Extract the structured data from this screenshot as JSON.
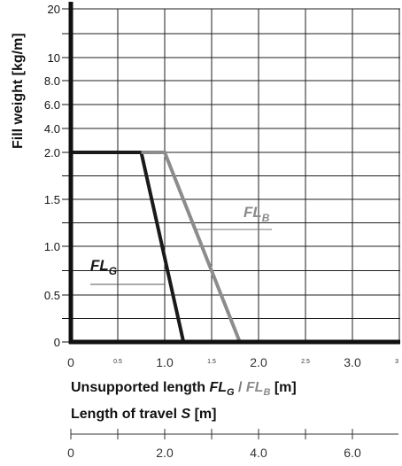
{
  "chart_data": {
    "type": "line",
    "ylabel": "Fill weight [kg/m]",
    "y_ticks": [
      "20",
      "10",
      "8.0",
      "6.0",
      "4.0",
      "2.0",
      "1.5",
      "1.0",
      "0.5",
      "0"
    ],
    "x_ticks_major": [
      "0",
      "1.0",
      "2.0",
      "3.0"
    ],
    "x_ticks_minor": [
      "0.5",
      "1.5",
      "2.5",
      "3"
    ],
    "xlabel": {
      "prefix": "Unsupported length ",
      "g_main": "FL",
      "g_sub": "G",
      "sep": " / ",
      "b_main": "FL",
      "b_sub": "B",
      "suffix": " [m]"
    },
    "secondary_axis": {
      "label_prefix": "Length of travel ",
      "label_var": "S",
      "label_suffix": " [m]",
      "ticks": [
        {
          "label": "0",
          "value": 0
        },
        {
          "label": "2.0",
          "value": 2
        },
        {
          "label": "4.0",
          "value": 4
        },
        {
          "label": "6.0",
          "value": 6
        }
      ]
    },
    "series": [
      {
        "name": "FL_G",
        "label_main": "FL",
        "label_sub": "G",
        "color": "#1a1a1a",
        "points": [
          [
            0,
            2.0
          ],
          [
            0.75,
            2.0
          ],
          [
            1.2,
            0
          ]
        ]
      },
      {
        "name": "FL_B",
        "label_main": "FL",
        "label_sub": "B",
        "color": "#8c8c8c",
        "points": [
          [
            0.75,
            2.0
          ],
          [
            1.0,
            2.0
          ],
          [
            1.8,
            0
          ]
        ]
      }
    ],
    "grid": true
  }
}
